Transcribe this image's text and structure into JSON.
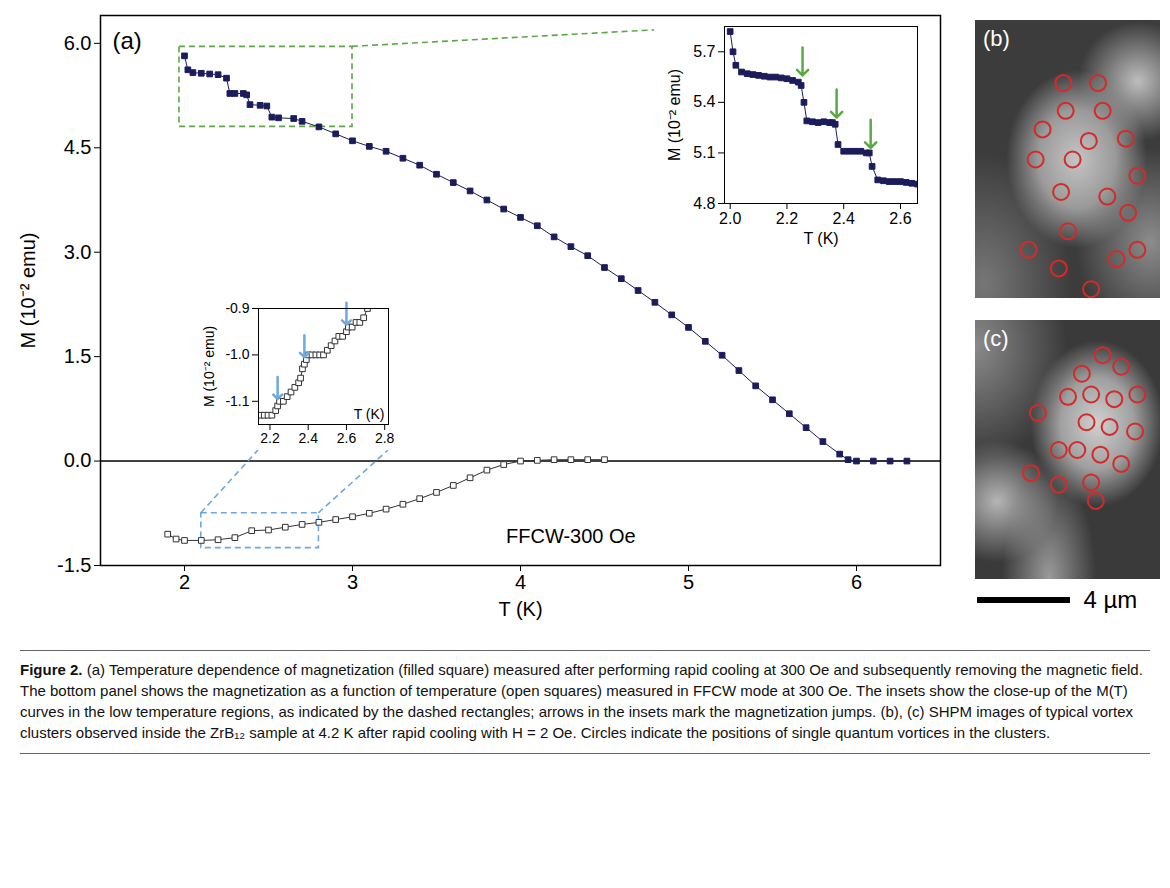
{
  "caption": {
    "label": "Figure 2.",
    "text": "(a) Temperature dependence of magnetization (filled square) measured after performing rapid cooling at 300 Oe and subsequently removing the magnetic field. The bottom panel shows the magnetization as a function of temperature (open squares) measured in FFCW mode at 300 Oe. The insets show the close-up of the M(T) curves in the low temperature regions, as indicated by the dashed rectangles; arrows in the insets mark the magnetization jumps. (b), (c) SHPM images of typical vortex clusters observed inside the ZrB₁₂ sample at 4.2 K after rapid cooling with H = 2 Oe. Circles indicate the positions of single quantum vortices in the clusters."
  },
  "chart_data": [
    {
      "type": "line",
      "panel_label": "(a)",
      "xlabel": "T (K)",
      "ylabel": "M (10⁻² emu)",
      "xlim": [
        1.5,
        6.5
      ],
      "xticks": [
        2,
        3,
        4,
        5,
        6
      ],
      "ylim": [
        -1.5,
        6.4
      ],
      "yticks": [
        -1.5,
        {
          "value": 0,
          "label": "0.0"
        },
        1.5,
        {
          "value": 3,
          "label": "3.0"
        },
        4.5,
        {
          "value": 6,
          "label": "6.0"
        }
      ],
      "hline": 0,
      "annotations": [
        {
          "text": "FFCW-300 Oe",
          "x": 4.3,
          "y": -1.08
        }
      ],
      "zoom_boxes": [
        {
          "xlim": [
            1.97,
            3.0
          ],
          "ylim": [
            4.8,
            5.95
          ],
          "color": "#5aa845",
          "line_style": "dashed"
        },
        {
          "xlim": [
            2.1,
            2.8
          ],
          "ylim": [
            -1.25,
            -0.75
          ],
          "color": "#6fa8dc",
          "line_style": "dashed"
        }
      ],
      "series": [
        {
          "color": "#1c1c5c",
          "marker": "square",
          "x": [
            2.0,
            2.02,
            2.05,
            2.1,
            2.15,
            2.2,
            2.25,
            2.27,
            2.3,
            2.35,
            2.37,
            2.39,
            2.45,
            2.49,
            2.52,
            2.56,
            2.65,
            2.7,
            2.8,
            2.9,
            3.0,
            3.1,
            3.2,
            3.3,
            3.4,
            3.5,
            3.6,
            3.7,
            3.8,
            3.9,
            4.0,
            4.1,
            4.2,
            4.3,
            4.4,
            4.5,
            4.6,
            4.7,
            4.8,
            4.9,
            5.0,
            5.1,
            5.2,
            5.3,
            5.4,
            5.5,
            5.6,
            5.7,
            5.8,
            5.9,
            5.95,
            6.0,
            6.1,
            6.2,
            6.3
          ],
          "values": [
            5.82,
            5.62,
            5.58,
            5.57,
            5.56,
            5.55,
            5.5,
            5.28,
            5.28,
            5.28,
            5.26,
            5.12,
            5.11,
            5.1,
            4.94,
            4.93,
            4.92,
            4.88,
            4.8,
            4.7,
            4.6,
            4.52,
            4.45,
            4.35,
            4.25,
            4.12,
            4.0,
            3.88,
            3.75,
            3.62,
            3.5,
            3.38,
            3.22,
            3.08,
            2.95,
            2.78,
            2.62,
            2.45,
            2.28,
            2.1,
            1.92,
            1.72,
            1.52,
            1.3,
            1.08,
            0.88,
            0.68,
            0.48,
            0.28,
            0.1,
            0.02,
            0,
            0,
            0,
            0
          ]
        },
        {
          "color": "#333333",
          "marker": "square-open",
          "x": [
            1.9,
            1.95,
            2.0,
            2.1,
            2.2,
            2.3,
            2.4,
            2.5,
            2.6,
            2.7,
            2.8,
            2.9,
            3.0,
            3.1,
            3.2,
            3.3,
            3.4,
            3.5,
            3.6,
            3.7,
            3.8,
            3.9,
            4.0,
            4.1,
            4.2,
            4.3,
            4.4,
            4.5
          ],
          "values": [
            -1.05,
            -1.12,
            -1.14,
            -1.14,
            -1.13,
            -1.1,
            -1.0,
            -0.99,
            -0.95,
            -0.91,
            -0.88,
            -0.84,
            -0.8,
            -0.75,
            -0.69,
            -0.62,
            -0.54,
            -0.45,
            -0.35,
            -0.24,
            -0.13,
            -0.05,
            0.0,
            0.01,
            0.02,
            0.02,
            0.02,
            0.02
          ]
        }
      ]
    },
    {
      "type": "line",
      "xlabel": "T (K)",
      "ylabel": "M (10⁻² emu)",
      "xlim": [
        1.98,
        2.66
      ],
      "xticks": [
        {
          "value": 2,
          "label": "2.0"
        },
        2.2,
        2.4,
        2.6
      ],
      "ylim": [
        4.8,
        5.85
      ],
      "yticks": [
        4.8,
        5.1,
        5.4,
        5.7
      ],
      "arrows": {
        "color": "#5aa845",
        "x": [
          2.255,
          2.375,
          2.495
        ],
        "y": [
          5.56,
          5.31,
          5.13
        ]
      },
      "series": [
        {
          "color": "#1c1c5c",
          "marker": "square",
          "x": [
            2.0,
            2.01,
            2.02,
            2.04,
            2.06,
            2.08,
            2.1,
            2.12,
            2.14,
            2.16,
            2.18,
            2.2,
            2.22,
            2.24,
            2.25,
            2.26,
            2.27,
            2.29,
            2.31,
            2.33,
            2.35,
            2.36,
            2.37,
            2.38,
            2.4,
            2.42,
            2.44,
            2.46,
            2.48,
            2.49,
            2.5,
            2.52,
            2.54,
            2.56,
            2.58,
            2.6,
            2.62,
            2.64,
            2.66
          ],
          "values": [
            5.82,
            5.7,
            5.62,
            5.58,
            5.57,
            5.565,
            5.56,
            5.555,
            5.55,
            5.55,
            5.545,
            5.54,
            5.53,
            5.52,
            5.5,
            5.4,
            5.29,
            5.285,
            5.28,
            5.285,
            5.28,
            5.28,
            5.27,
            5.15,
            5.11,
            5.11,
            5.11,
            5.11,
            5.1,
            5.1,
            5.02,
            4.94,
            4.935,
            4.93,
            4.93,
            4.93,
            4.925,
            4.92,
            4.915
          ]
        }
      ]
    },
    {
      "type": "line",
      "xlabel": "T (K)",
      "ylabel": "M (10⁻² emu)",
      "xlim": [
        2.14,
        2.82
      ],
      "xticks": [
        2.2,
        2.4,
        2.6,
        2.8
      ],
      "ylim": [
        -1.15,
        -0.9
      ],
      "yticks": [
        -1.1,
        {
          "value": -1,
          "label": "-1.0"
        },
        -0.9
      ],
      "arrows": {
        "color": "#6fa8dc",
        "x": [
          2.24,
          2.38,
          2.6
        ],
        "y": [
          -1.095,
          -1.005,
          -0.935
        ]
      },
      "series": [
        {
          "color": "#333333",
          "marker": "square-open",
          "x": [
            2.15,
            2.17,
            2.19,
            2.21,
            2.23,
            2.24,
            2.25,
            2.27,
            2.29,
            2.31,
            2.33,
            2.35,
            2.36,
            2.37,
            2.38,
            2.39,
            2.4,
            2.42,
            2.44,
            2.46,
            2.48,
            2.5,
            2.52,
            2.54,
            2.56,
            2.58,
            2.6,
            2.61,
            2.63,
            2.65,
            2.67,
            2.69,
            2.71
          ],
          "values": [
            -1.13,
            -1.13,
            -1.13,
            -1.13,
            -1.12,
            -1.11,
            -1.1,
            -1.1,
            -1.09,
            -1.08,
            -1.07,
            -1.06,
            -1.05,
            -1.03,
            -1.02,
            -1.01,
            -1.0,
            -1.0,
            -1.0,
            -1.0,
            -1.0,
            -0.99,
            -0.98,
            -0.97,
            -0.96,
            -0.96,
            -0.95,
            -0.94,
            -0.94,
            -0.93,
            -0.93,
            -0.92,
            -0.9
          ]
        }
      ]
    }
  ],
  "images": [
    {
      "label": "(b)",
      "size_um": [
        8,
        12
      ],
      "color": "#d42a2a",
      "vortices": [
        [
          3.8,
          2.7
        ],
        [
          5.3,
          2.7
        ],
        [
          3.9,
          3.9
        ],
        [
          5.5,
          3.9
        ],
        [
          2.9,
          4.7
        ],
        [
          6.5,
          5.1
        ],
        [
          2.6,
          6.0
        ],
        [
          4.2,
          6.0
        ],
        [
          7.0,
          6.7
        ],
        [
          3.7,
          7.4
        ],
        [
          5.7,
          7.6
        ],
        [
          2.3,
          9.9
        ],
        [
          4.0,
          9.1
        ],
        [
          7.0,
          9.9
        ],
        [
          3.6,
          10.7
        ],
        [
          6.1,
          10.3
        ],
        [
          5.0,
          11.6
        ],
        [
          4.9,
          5.2
        ],
        [
          6.6,
          8.3
        ]
      ]
    },
    {
      "label": "(c)",
      "size_um": [
        8,
        11.2
      ],
      "color": "#d42a2a",
      "vortices": [
        [
          5.5,
          1.5
        ],
        [
          4.6,
          2.3
        ],
        [
          6.3,
          2.0
        ],
        [
          4.0,
          3.3
        ],
        [
          5.0,
          3.2
        ],
        [
          6.0,
          3.4
        ],
        [
          7.0,
          3.2
        ],
        [
          2.7,
          4.0
        ],
        [
          4.8,
          4.4
        ],
        [
          5.8,
          4.6
        ],
        [
          6.9,
          4.8
        ],
        [
          3.6,
          5.6
        ],
        [
          4.4,
          5.6
        ],
        [
          5.4,
          5.8
        ],
        [
          6.3,
          6.2
        ],
        [
          2.4,
          6.6
        ],
        [
          3.6,
          7.1
        ],
        [
          5.0,
          7.0
        ],
        [
          5.2,
          7.8
        ]
      ]
    }
  ],
  "scale_bar": {
    "length_um": 4,
    "label": "4 µm"
  }
}
